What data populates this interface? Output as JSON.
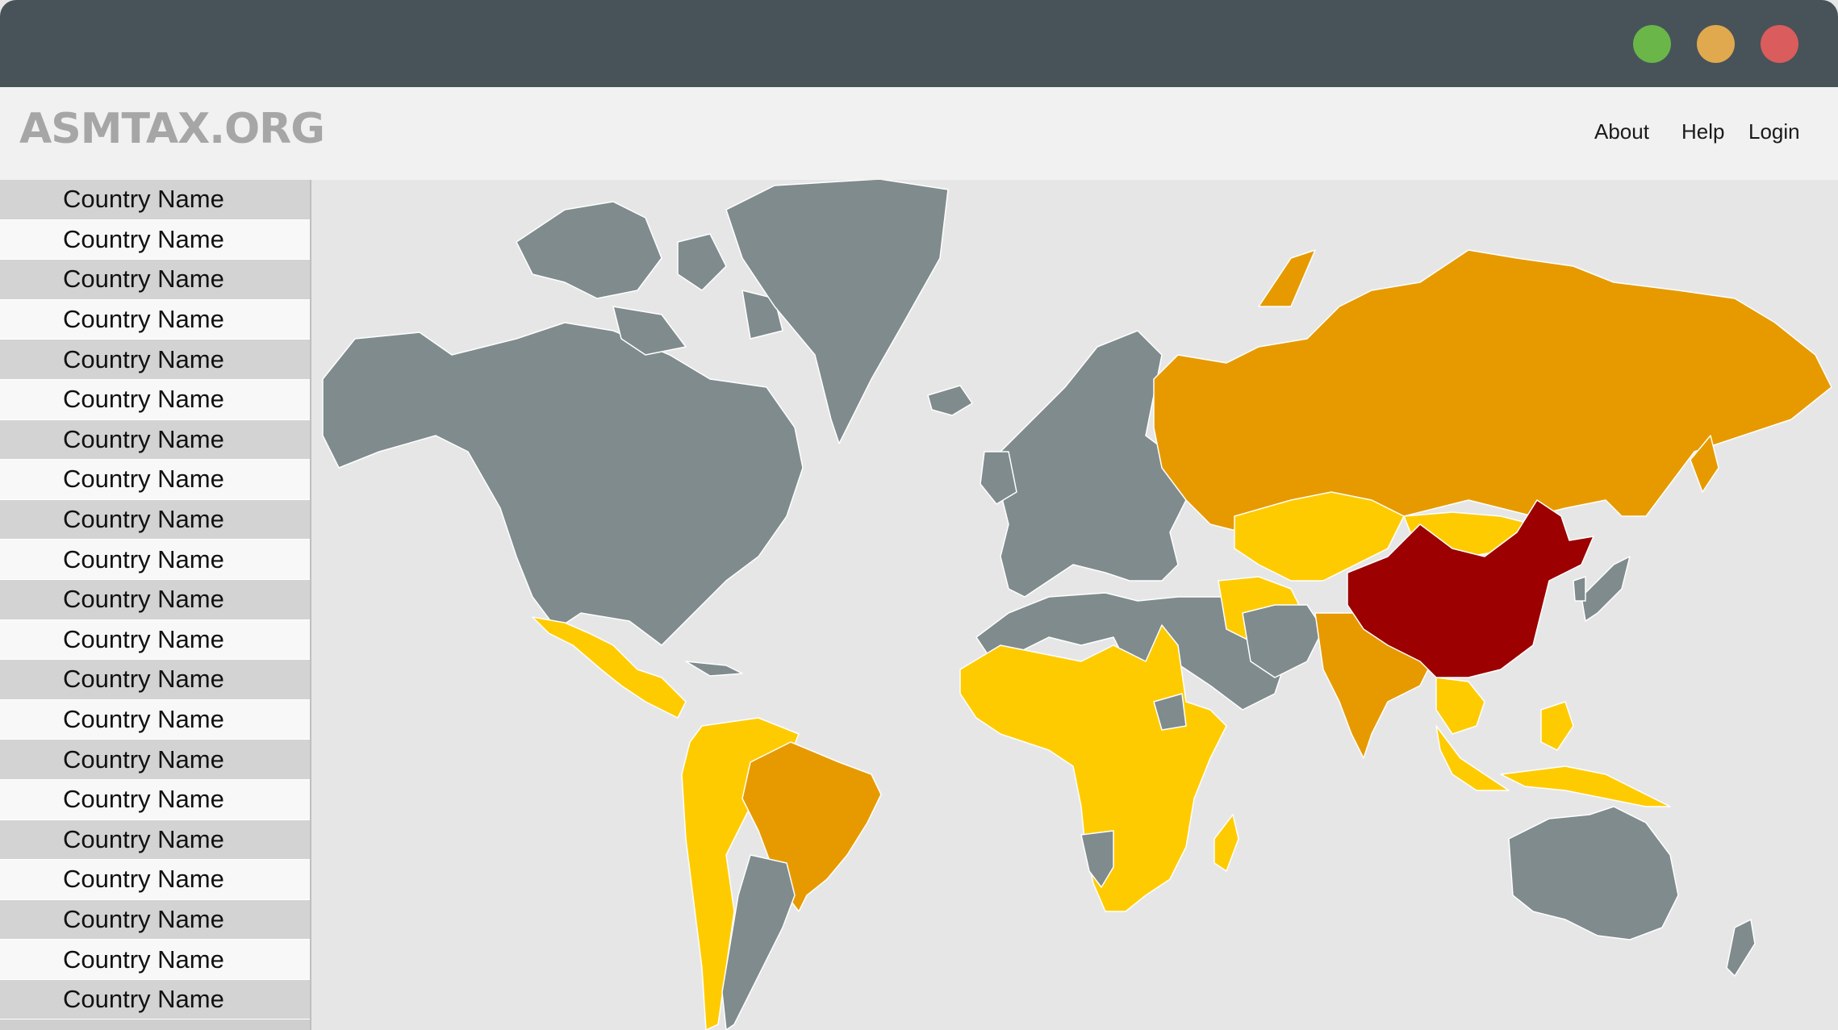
{
  "window": {
    "controls": [
      "maximize-button",
      "minimize-button",
      "close-button"
    ]
  },
  "site": {
    "logo": "ASMTAX.ORG"
  },
  "nav": {
    "about": "About",
    "help": "Help",
    "login": "Login"
  },
  "sidebar": {
    "items": [
      "Country Name",
      "Country Name",
      "Country Name",
      "Country Name",
      "Country Name",
      "Country Name",
      "Country Name",
      "Country Name",
      "Country Name",
      "Country Name",
      "Country Name",
      "Country Name",
      "Country Name",
      "Country Name",
      "Country Name",
      "Country Name",
      "Country Name",
      "Country Name",
      "Country Name",
      "Country Name",
      "Country Name"
    ]
  },
  "map": {
    "colors": {
      "none": "#7f8b8d",
      "low": "#fecb00",
      "medium": "#e69a00",
      "high": "#9c0000",
      "water": "#e6e6e6"
    }
  }
}
